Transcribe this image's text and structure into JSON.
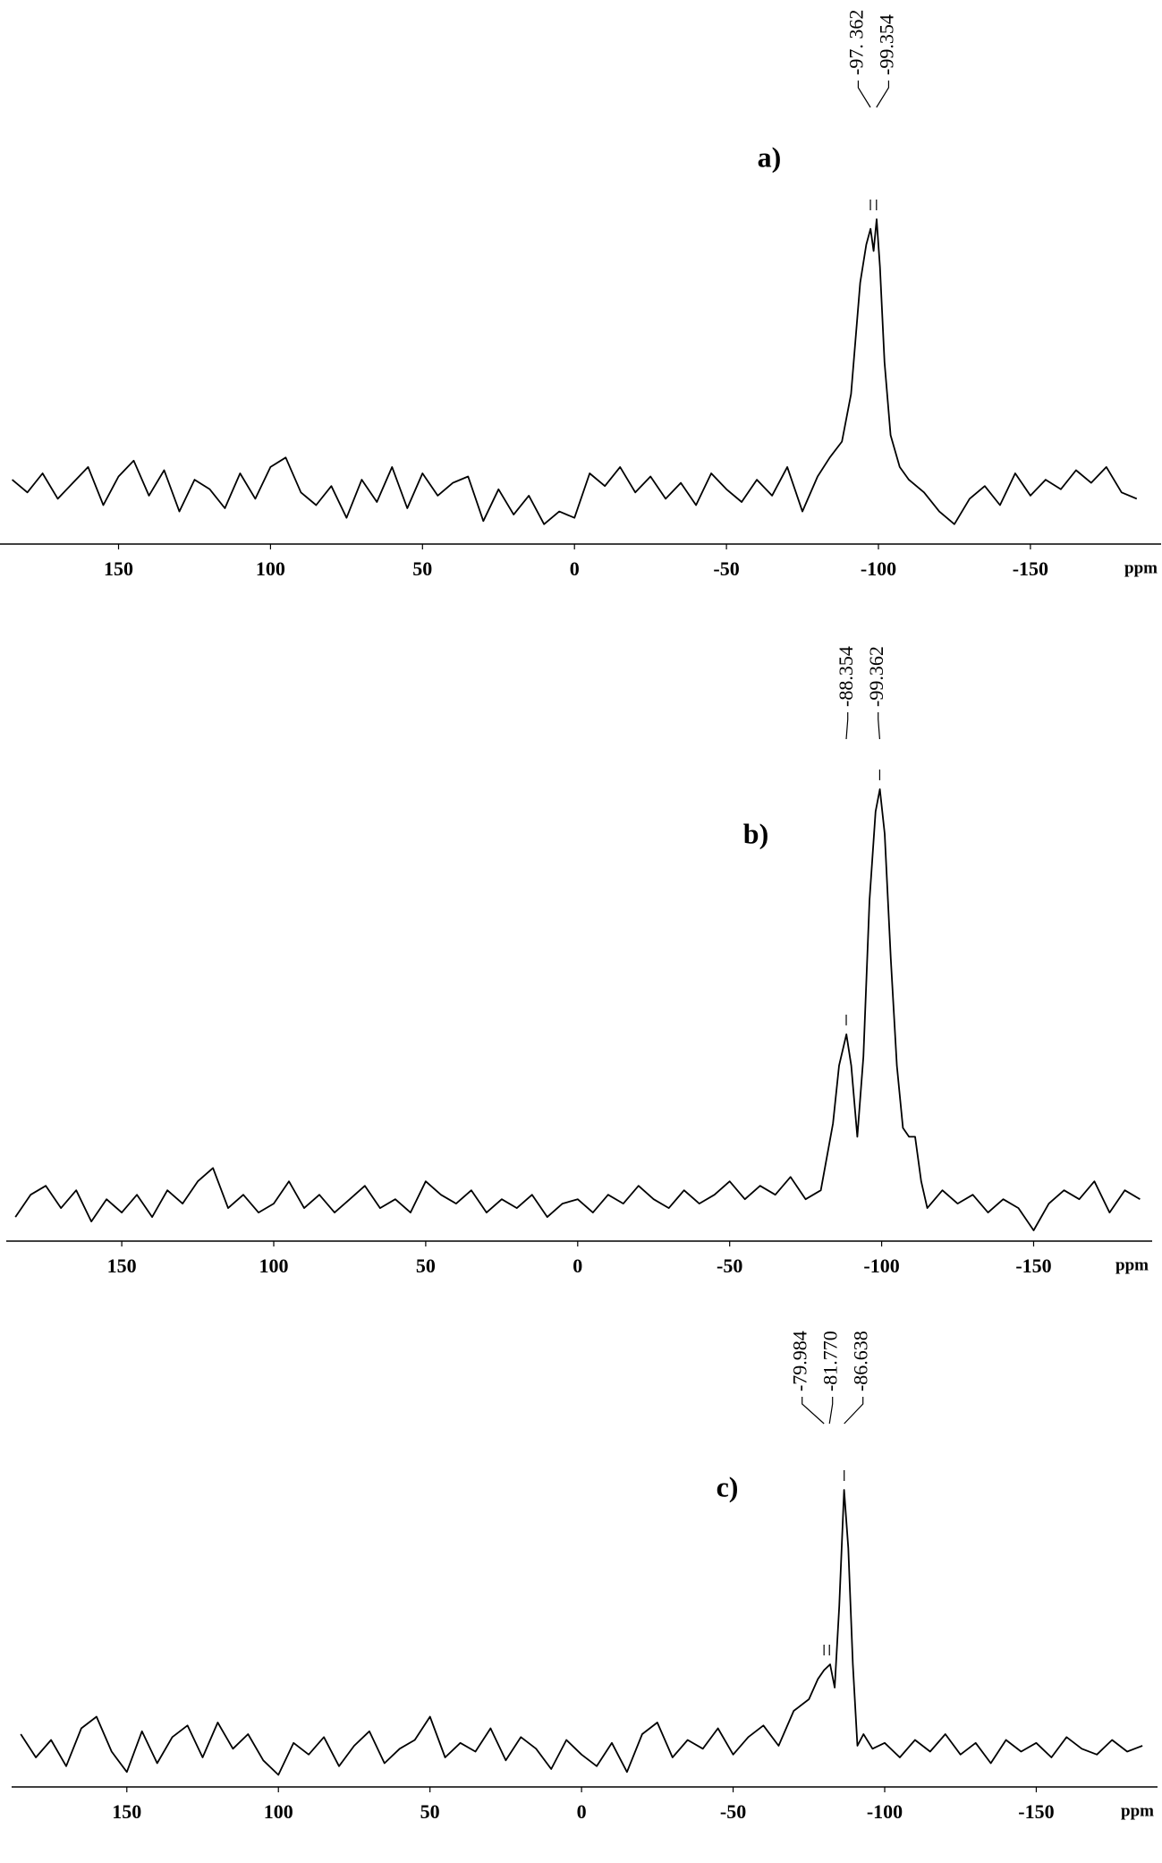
{
  "chart_data": [
    {
      "type": "line",
      "title": "a)",
      "xlabel": "ppm",
      "color": "#000000",
      "xlim": [
        189,
        -193
      ],
      "ylim": [
        0,
        100
      ],
      "xticks": [
        150,
        100,
        50,
        0,
        -50,
        -100,
        -150
      ],
      "x": [
        185,
        180,
        175,
        170,
        165,
        160,
        155,
        150,
        145,
        140,
        135,
        130,
        125,
        120,
        115,
        110,
        105,
        100,
        95,
        90,
        85,
        80,
        75,
        70,
        65,
        60,
        55,
        50,
        45,
        40,
        35,
        30,
        25,
        20,
        15,
        10,
        5,
        0,
        -5,
        -10,
        -15,
        -20,
        -25,
        -30,
        -35,
        -40,
        -45,
        -50,
        -55,
        -60,
        -65,
        -70,
        -75,
        -80,
        -84,
        -88,
        -91,
        -94,
        -96,
        -97.4,
        -98.4,
        -99.4,
        -100.5,
        -102,
        -104,
        -107,
        -110,
        -115,
        -120,
        -125,
        -130,
        -135,
        -140,
        -145,
        -150,
        -155,
        -160,
        -165,
        -170,
        -175,
        -180,
        -185
      ],
      "values": [
        18,
        14,
        20,
        12,
        17,
        22,
        10,
        19,
        24,
        13,
        21,
        8,
        18,
        15,
        9,
        20,
        12,
        22,
        25,
        14,
        10,
        16,
        6,
        18,
        11,
        22,
        9,
        20,
        13,
        17,
        19,
        5,
        15,
        7,
        13,
        4,
        8,
        6,
        20,
        16,
        22,
        14,
        19,
        12,
        17,
        10,
        20,
        15,
        11,
        18,
        13,
        22,
        8,
        19,
        25,
        30,
        45,
        80,
        92,
        97,
        90,
        100,
        85,
        55,
        32,
        22,
        18,
        14,
        8,
        4,
        12,
        16,
        10,
        20,
        13,
        18,
        15,
        21,
        17,
        22,
        14,
        12
      ],
      "annotations": [
        {
          "x": -97.362,
          "label": "-97. 362"
        },
        {
          "x": -99.354,
          "label": "-99.354"
        }
      ]
    },
    {
      "type": "line",
      "title": "b)",
      "xlabel": "ppm",
      "color": "#000000",
      "xlim": [
        188,
        -189
      ],
      "ylim": [
        0,
        100
      ],
      "xticks": [
        150,
        100,
        50,
        0,
        -50,
        -100,
        -150
      ],
      "x": [
        185,
        180,
        175,
        170,
        165,
        160,
        155,
        150,
        145,
        140,
        135,
        130,
        125,
        120,
        115,
        110,
        105,
        100,
        95,
        90,
        85,
        80,
        75,
        70,
        65,
        60,
        55,
        50,
        45,
        40,
        35,
        30,
        25,
        20,
        15,
        10,
        5,
        0,
        -5,
        -10,
        -15,
        -20,
        -25,
        -30,
        -35,
        -40,
        -45,
        -50,
        -55,
        -60,
        -65,
        -70,
        -75,
        -80,
        -84,
        -86,
        -88.4,
        -90,
        -92,
        -94,
        -96,
        -98,
        -99.4,
        -101,
        -103,
        -105,
        -107,
        -109,
        -111,
        -113,
        -115,
        -120,
        -125,
        -130,
        -135,
        -140,
        -145,
        -150,
        -155,
        -160,
        -165,
        -170,
        -175,
        -180,
        -185
      ],
      "values": [
        4,
        9,
        11,
        6,
        10,
        3,
        8,
        5,
        9,
        4,
        10,
        7,
        12,
        15,
        6,
        9,
        5,
        7,
        12,
        6,
        9,
        5,
        8,
        11,
        6,
        8,
        5,
        12,
        9,
        7,
        10,
        5,
        8,
        6,
        9,
        4,
        7,
        8,
        5,
        9,
        7,
        11,
        8,
        6,
        10,
        7,
        9,
        12,
        8,
        11,
        9,
        13,
        8,
        10,
        25,
        38,
        45,
        38,
        22,
        40,
        75,
        95,
        100,
        90,
        62,
        38,
        24,
        22,
        22,
        12,
        6,
        10,
        7,
        9,
        5,
        8,
        6,
        1,
        7,
        10,
        8,
        12,
        5,
        10,
        8
      ],
      "annotations": [
        {
          "x": -88.354,
          "label": "-88.354"
        },
        {
          "x": -99.362,
          "label": "-99.362"
        }
      ]
    },
    {
      "type": "line",
      "title": "c)",
      "xlabel": "ppm",
      "color": "#000000",
      "xlim": [
        188,
        -190
      ],
      "ylim": [
        0,
        100
      ],
      "xticks": [
        150,
        100,
        50,
        0,
        -50,
        -100,
        -150
      ],
      "x": [
        185,
        180,
        175,
        170,
        165,
        160,
        155,
        150,
        145,
        140,
        135,
        130,
        125,
        120,
        115,
        110,
        105,
        100,
        95,
        90,
        85,
        80,
        75,
        70,
        65,
        60,
        55,
        50,
        45,
        40,
        35,
        30,
        25,
        20,
        15,
        10,
        5,
        0,
        -5,
        -10,
        -15,
        -20,
        -25,
        -30,
        -35,
        -40,
        -45,
        -50,
        -55,
        -60,
        -65,
        -70,
        -75,
        -78,
        -80,
        -82,
        -83.5,
        -85,
        -86.6,
        -88,
        -89.5,
        -91,
        -93,
        -96,
        -100,
        -105,
        -110,
        -115,
        -120,
        -125,
        -130,
        -135,
        -140,
        -145,
        -150,
        -155,
        -160,
        -165,
        -170,
        -175,
        -180,
        -185
      ],
      "values": [
        16,
        8,
        14,
        5,
        18,
        22,
        10,
        3,
        17,
        6,
        15,
        19,
        8,
        20,
        11,
        16,
        7,
        2,
        13,
        9,
        15,
        5,
        12,
        17,
        6,
        11,
        14,
        22,
        8,
        13,
        10,
        18,
        7,
        15,
        11,
        4,
        14,
        9,
        5,
        13,
        3,
        16,
        20,
        8,
        14,
        11,
        18,
        9,
        15,
        19,
        12,
        24,
        28,
        35,
        38,
        40,
        32,
        60,
        100,
        80,
        40,
        12,
        16,
        11,
        13,
        8,
        14,
        10,
        16,
        9,
        13,
        6,
        14,
        10,
        13,
        8,
        15,
        11,
        9,
        14,
        10,
        12
      ],
      "annotations": [
        {
          "x": -79.984,
          "label": "-79.984"
        },
        {
          "x": -81.77,
          "label": "-81.770"
        },
        {
          "x": -86.638,
          "label": "-86.638"
        }
      ]
    }
  ]
}
